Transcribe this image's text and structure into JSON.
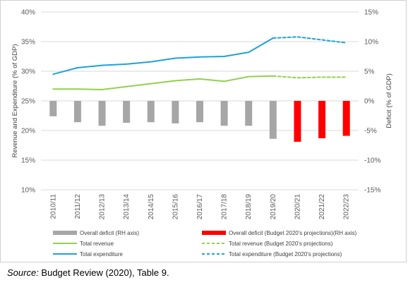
{
  "chart_data": {
    "type": "bar+line",
    "categories": [
      "2010/11",
      "2011/12",
      "2012/13",
      "2013/14",
      "2014/15",
      "2015/16",
      "2016/17",
      "2017/18",
      "2018/19",
      "2019/20",
      "2020/21",
      "2021/22",
      "2022/23"
    ],
    "left_axis": {
      "label": "Revenue and Expenditure (% of GDP)",
      "ylim": [
        10,
        40
      ],
      "ticks": [
        "10%",
        "15%",
        "20%",
        "25%",
        "30%",
        "35%",
        "40%"
      ]
    },
    "right_axis": {
      "label": "Deficit (% of GDP)",
      "ylim": [
        -15,
        15
      ],
      "ticks": [
        "-15%",
        "-10%",
        "-5%",
        "0%",
        "5%",
        "10%",
        "15%"
      ]
    },
    "series": [
      {
        "name": "Overall deficit (RH axis)",
        "kind": "bar",
        "axis": "right",
        "color": "#a6a6a6",
        "values": [
          -2.6,
          -3.6,
          -4.2,
          -3.7,
          -3.6,
          -3.8,
          -3.6,
          -4.2,
          -4.2,
          -6.4,
          null,
          null,
          null
        ]
      },
      {
        "name": "Overall deficit (Budget 2020's projections)(RH axis)",
        "kind": "bar",
        "axis": "right",
        "color": "#ff0000",
        "values": [
          null,
          null,
          null,
          null,
          null,
          null,
          null,
          null,
          null,
          null,
          -6.9,
          -6.3,
          -5.9
        ]
      },
      {
        "name": "Total revenue",
        "kind": "line",
        "axis": "left",
        "color": "#92d050",
        "dash": false,
        "values": [
          27.0,
          27.0,
          26.9,
          27.4,
          27.9,
          28.4,
          28.7,
          28.3,
          29.1,
          29.2,
          null,
          null,
          null
        ]
      },
      {
        "name": "Total revenue (Budget 2020's projections)",
        "kind": "line",
        "axis": "left",
        "color": "#92d050",
        "dash": true,
        "values": [
          null,
          null,
          null,
          null,
          null,
          null,
          null,
          null,
          null,
          29.2,
          28.9,
          29.0,
          29.0
        ]
      },
      {
        "name": "Total expenditure",
        "kind": "line",
        "axis": "left",
        "color": "#1fa2d8",
        "dash": false,
        "values": [
          29.5,
          30.6,
          31.0,
          31.2,
          31.6,
          32.2,
          32.4,
          32.5,
          33.2,
          35.6,
          null,
          null,
          null
        ]
      },
      {
        "name": "Total expenditure (Budget 2020's projections)",
        "kind": "line",
        "axis": "left",
        "color": "#1fa2d8",
        "dash": true,
        "values": [
          null,
          null,
          null,
          null,
          null,
          null,
          null,
          null,
          null,
          35.6,
          35.8,
          35.3,
          34.8
        ]
      }
    ],
    "legend": [
      {
        "label": "Overall deficit (RH axis)",
        "swatch": "bar",
        "color": "#a6a6a6"
      },
      {
        "label": "Overall deficit (Budget 2020's projections)(RH axis)",
        "swatch": "bar",
        "color": "#ff0000"
      },
      {
        "label": "Total revenue",
        "swatch": "line",
        "color": "#92d050"
      },
      {
        "label": "Total revenue (Budget 2020's projections)",
        "swatch": "dash",
        "color": "#92d050"
      },
      {
        "label": "Total expenditure",
        "swatch": "line",
        "color": "#1fa2d8"
      },
      {
        "label": "Total expenditure (Budget 2020's projections)",
        "swatch": "dash",
        "color": "#1fa2d8"
      }
    ],
    "legend_placement": "bottom",
    "grid": "horizontal"
  },
  "source": {
    "prefix": "Source:",
    "text": " Budget Review (2020), Table 9."
  }
}
